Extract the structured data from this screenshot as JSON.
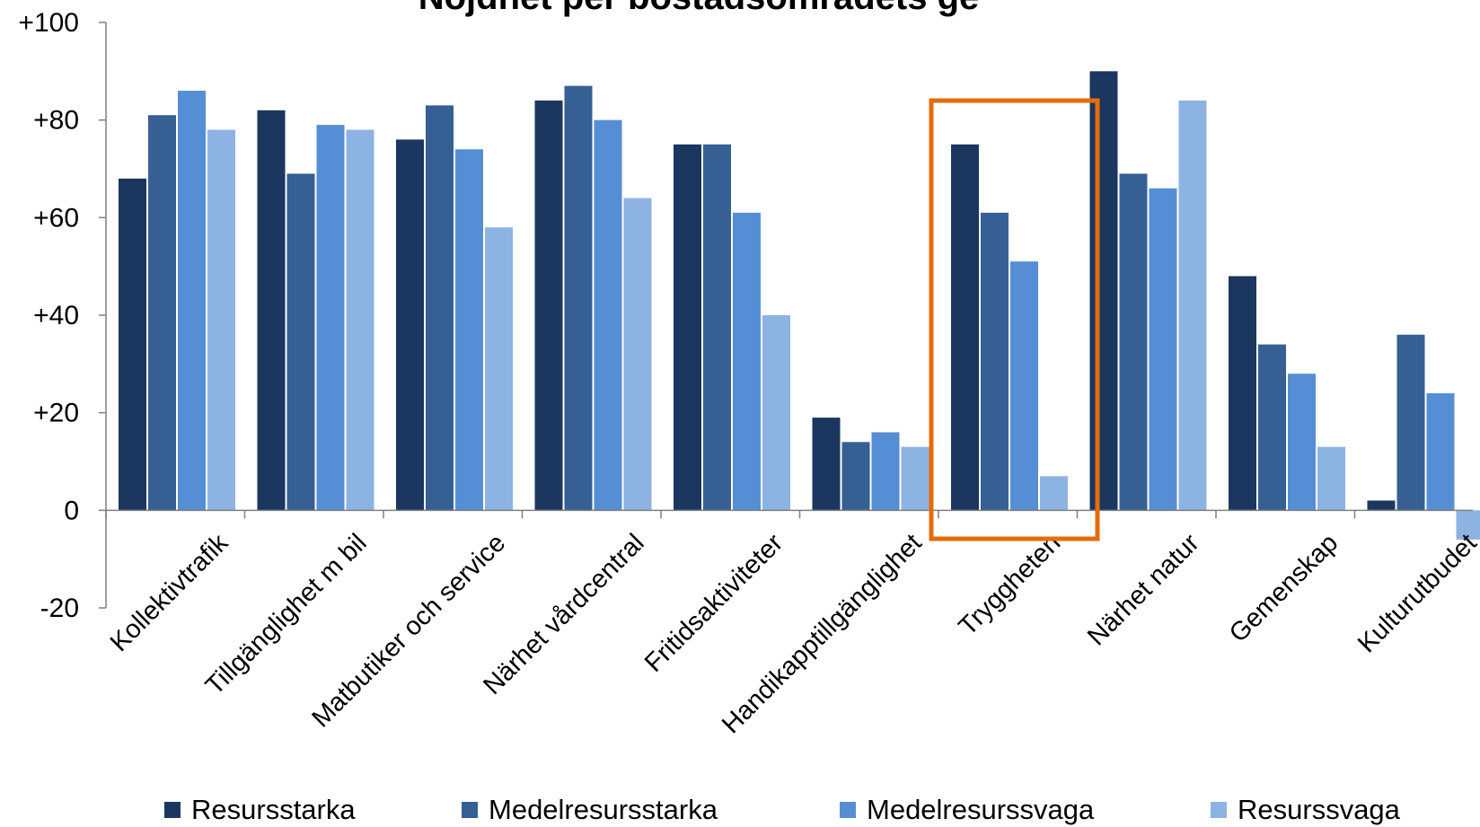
{
  "chart_data": {
    "type": "bar",
    "title": "Nöjdhet per bostadsområdets ge",
    "categories": [
      "Kollektivtrafik",
      "Tillgänglighet m bil",
      "Matbutiker och service",
      "Närhet vårdcentral",
      "Fritidsaktiviteter",
      "Handikapptillgänglighet",
      "Tryggheten",
      "Närhet natur",
      "Gemenskap",
      "Kulturutbudet"
    ],
    "series": [
      {
        "name": "Resursstarka",
        "color": "#1b375f",
        "values": [
          68,
          82,
          76,
          84,
          75,
          19,
          75,
          90,
          48,
          2
        ]
      },
      {
        "name": "Medelresursstarka",
        "color": "#365f94",
        "values": [
          81,
          69,
          83,
          87,
          75,
          14,
          61,
          69,
          34,
          36
        ]
      },
      {
        "name": "Medelresurssvaga",
        "color": "#558ed5",
        "values": [
          86,
          79,
          74,
          80,
          61,
          16,
          51,
          66,
          28,
          24
        ]
      },
      {
        "name": "Resurssvaga",
        "color": "#8db3e2",
        "values": [
          78,
          78,
          58,
          64,
          40,
          13,
          7,
          84,
          13,
          -6
        ]
      }
    ],
    "ylim": [
      -20,
      100
    ],
    "y_ticks": [
      "-20",
      "0",
      "+20",
      "+40",
      "+60",
      "+80",
      "+100"
    ],
    "y_tick_values": [
      -20,
      0,
      20,
      40,
      60,
      80,
      100
    ],
    "grid": false,
    "legend": "bottom",
    "highlight": {
      "category": "Tryggheten",
      "color": "#e46c0a"
    }
  }
}
